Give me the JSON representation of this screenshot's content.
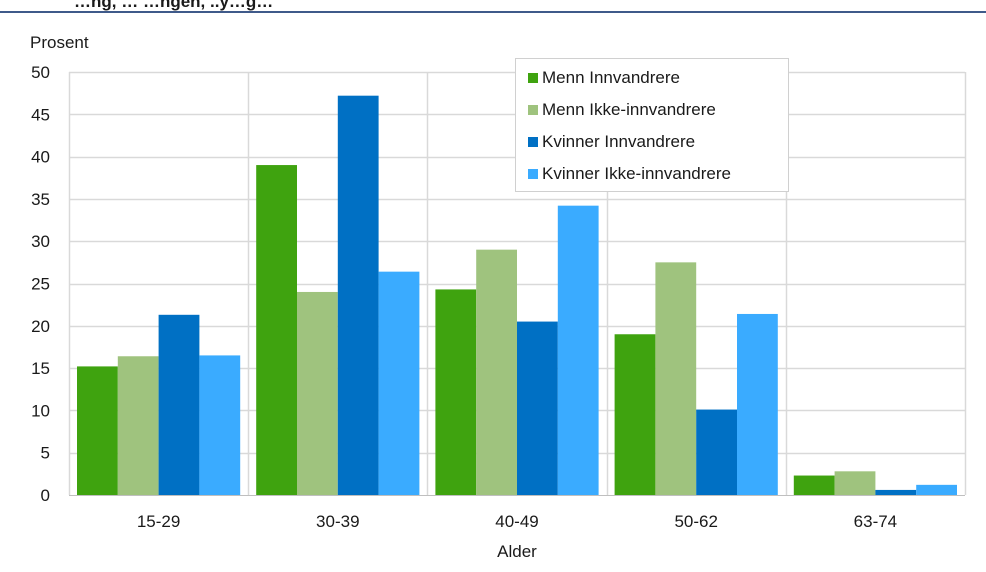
{
  "header": {
    "title_fragment": "…ng, …  …ngen, ..y…g…"
  },
  "chart_data": {
    "type": "bar",
    "ylabel": "Prosent",
    "xlabel": "Alder",
    "ylim": [
      0,
      50
    ],
    "yticks": [
      0,
      5,
      10,
      15,
      20,
      25,
      30,
      35,
      40,
      45,
      50
    ],
    "grid": true,
    "legend_position": "top-right",
    "categories": [
      "15-29",
      "30-39",
      "40-49",
      "50-62",
      "63-74"
    ],
    "series": [
      {
        "name": "Menn Innvandrere",
        "color": "#3fa30f",
        "values": [
          15.2,
          39.0,
          24.3,
          19.0,
          2.3
        ]
      },
      {
        "name": "Menn Ikke-innvandrere",
        "color": "#9fc37e",
        "values": [
          16.4,
          24.0,
          29.0,
          27.5,
          2.8
        ]
      },
      {
        "name": "Kvinner Innvandrere",
        "color": "#0070c4",
        "values": [
          21.3,
          47.2,
          20.5,
          10.1,
          0.6
        ]
      },
      {
        "name": "Kvinner Ikke-innvandrere",
        "color": "#3aabff",
        "values": [
          16.5,
          26.4,
          34.2,
          21.4,
          1.2
        ]
      }
    ]
  }
}
